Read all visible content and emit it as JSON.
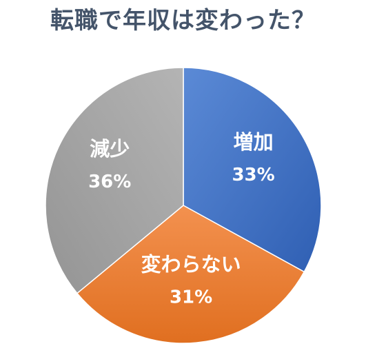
{
  "chart_data": {
    "type": "pie",
    "title": "転職で年収は変わった？",
    "slices": [
      {
        "label": "増加",
        "value": 33,
        "display": "33%",
        "color": "#4472c4"
      },
      {
        "label": "変わらない",
        "value": 31,
        "display": "31%",
        "color": "#ed7d31"
      },
      {
        "label": "減少",
        "value": 36,
        "display": "36%",
        "color": "#a5a5a5"
      }
    ],
    "start_angle": "top (12 o'clock)",
    "direction": "clockwise",
    "legend": "none",
    "data_labels": "inside slices"
  }
}
